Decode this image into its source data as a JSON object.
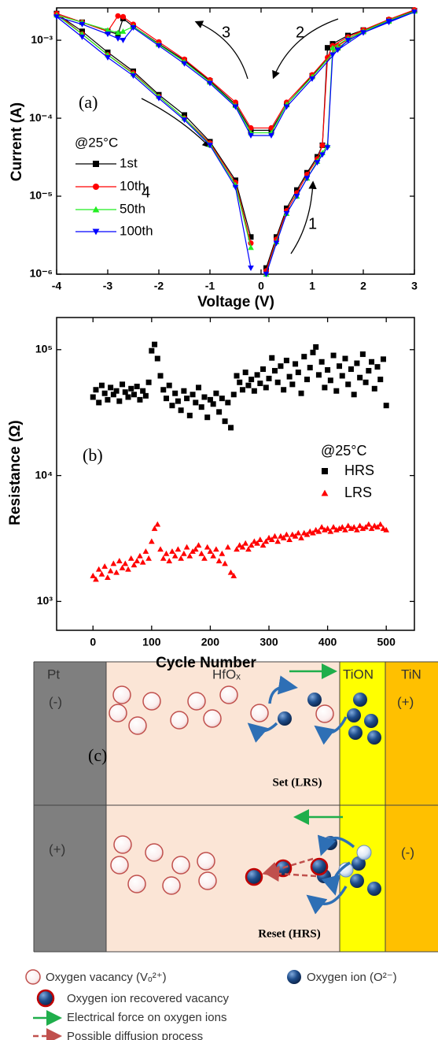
{
  "chart_data": [
    {
      "type": "line",
      "ylog": true,
      "grid": false,
      "xlabel": "Voltage (V)",
      "ylabel": "Current (A)",
      "x": [
        0.1,
        0.3,
        0.5,
        0.7,
        0.9,
        1.1,
        1.2,
        1.3,
        1.4,
        1.7,
        2.0,
        2.5,
        3.0,
        2.5,
        2.0,
        1.5,
        1.0,
        0.5,
        0.2,
        -0.2,
        -0.5,
        -1.0,
        -1.5,
        -2.0,
        -2.5,
        -2.7,
        -2.8,
        -3.0,
        -3.5,
        -4.0,
        -3.5,
        -3.0,
        -2.5,
        -2.0,
        -1.5,
        -1.0,
        -0.5,
        -0.2
      ],
      "series": [
        {
          "name": "1st",
          "color": "#000000",
          "marker": "square",
          "values": [
            1.2e-06,
            3e-06,
            7e-06,
            1.2e-05,
            2e-05,
            3.2e-05,
            4.5e-05,
            0.0008,
            0.0009,
            0.00115,
            0.00135,
            0.0018,
            0.0024,
            0.0018,
            0.0013,
            0.0008,
            0.00035,
            0.00015,
            7e-05,
            7e-05,
            0.00015,
            0.0003,
            0.00055,
            0.0009,
            0.0015,
            0.0019,
            0.0012,
            0.0013,
            0.0017,
            0.0022,
            0.0013,
            0.0007,
            0.0004,
            0.0002,
            0.00011,
            5e-05,
            1.6e-05,
            3e-06
          ]
        },
        {
          "name": "10th",
          "color": "#ff0000",
          "marker": "circle",
          "values": [
            1.1e-06,
            2.8e-06,
            6.5e-06,
            1.1e-05,
            1.9e-05,
            3e-05,
            4.5e-05,
            0.0006,
            0.00085,
            0.0011,
            0.00135,
            0.00185,
            0.00245,
            0.00185,
            0.00135,
            0.00085,
            0.00036,
            0.00016,
            7.5e-05,
            7.5e-05,
            0.00016,
            0.00031,
            0.00057,
            0.00095,
            0.0016,
            0.002,
            0.00205,
            0.0013,
            0.0017,
            0.0022,
            0.0012,
            0.00065,
            0.00038,
            0.00019,
            0.0001,
            4.8e-05,
            1.5e-05,
            2.5e-06
          ]
        },
        {
          "name": "50th",
          "color": "#22ee22",
          "marker": "triangle-up",
          "values": [
            1e-06,
            2.6e-06,
            6e-06,
            1e-05,
            1.7e-05,
            2.8e-05,
            3.6e-05,
            4.5e-05,
            0.0008,
            0.00105,
            0.0013,
            0.00175,
            0.00235,
            0.0018,
            0.0013,
            0.0008,
            0.00034,
            0.00015,
            6.5e-05,
            6.5e-05,
            0.000145,
            0.00029,
            0.00053,
            0.00088,
            0.0015,
            0.0013,
            0.00125,
            0.00135,
            0.0017,
            0.0021,
            0.0012,
            0.00065,
            0.00037,
            0.00019,
            0.0001,
            4.6e-05,
            1.4e-05,
            2.2e-06
          ]
        },
        {
          "name": "100th",
          "color": "#0000ff",
          "marker": "triangle-down",
          "values": [
            1e-06,
            2.5e-06,
            6e-06,
            1e-05,
            1.7e-05,
            2.7e-05,
            3.4e-05,
            4.2e-05,
            0.00065,
            0.001,
            0.00125,
            0.0017,
            0.0023,
            0.00175,
            0.00125,
            0.00075,
            0.00032,
            0.00014,
            6e-05,
            6e-05,
            0.00014,
            0.00028,
            0.0005,
            0.00085,
            0.00145,
            0.001,
            0.00105,
            0.0012,
            0.0016,
            0.002,
            0.0011,
            0.0006,
            0.00035,
            0.00018,
            9.5e-05,
            4.5e-05,
            1.3e-05,
            1.2e-06
          ]
        }
      ],
      "xlim": [
        -4,
        3
      ],
      "xticks": [
        -4,
        -3,
        -2,
        -1,
        0,
        1,
        2,
        3
      ],
      "ylim": [
        1e-06,
        0.0026
      ],
      "yticks": [
        {
          "value": 1e-06,
          "label": "10⁻⁶"
        },
        {
          "value": 1e-05,
          "label": "10⁻⁵"
        },
        {
          "value": 0.0001,
          "label": "10⁻⁴"
        },
        {
          "value": 0.001,
          "label": "10⁻³"
        }
      ],
      "annotations": [
        "(a)",
        "@25°C",
        "3",
        "2",
        "4",
        "1"
      ]
    },
    {
      "type": "scatter",
      "ylog": true,
      "grid": false,
      "xlabel": "Cycle Number",
      "ylabel": "Resistance (Ω)",
      "x": [
        0,
        5,
        10,
        15,
        20,
        25,
        30,
        35,
        40,
        45,
        50,
        55,
        60,
        65,
        70,
        75,
        80,
        85,
        90,
        95,
        100,
        105,
        110,
        115,
        120,
        125,
        130,
        135,
        140,
        145,
        150,
        155,
        160,
        165,
        170,
        175,
        180,
        185,
        190,
        195,
        200,
        205,
        210,
        215,
        220,
        225,
        230,
        235,
        240,
        245,
        250,
        255,
        260,
        265,
        270,
        275,
        280,
        285,
        290,
        295,
        300,
        305,
        310,
        315,
        320,
        325,
        330,
        335,
        340,
        345,
        350,
        355,
        360,
        365,
        370,
        375,
        380,
        385,
        390,
        395,
        400,
        405,
        410,
        415,
        420,
        425,
        430,
        435,
        440,
        445,
        450,
        455,
        460,
        465,
        470,
        475,
        480,
        485,
        490,
        495,
        500
      ],
      "series": [
        {
          "name": "HRS",
          "color": "#000000",
          "marker": "square",
          "values": [
            42000,
            48000,
            38000,
            52000,
            45000,
            40000,
            50000,
            44000,
            47000,
            39000,
            53000,
            46000,
            42000,
            49000,
            44000,
            51000,
            40000,
            47000,
            43000,
            55000,
            98000,
            110000,
            85000,
            62000,
            48000,
            41000,
            52000,
            36000,
            45000,
            39000,
            33000,
            47000,
            41000,
            30000,
            44000,
            38000,
            50000,
            35000,
            42000,
            29000,
            40000,
            37000,
            45000,
            32000,
            41000,
            27000,
            38000,
            24000,
            44000,
            62000,
            55000,
            48000,
            66000,
            52000,
            58000,
            47000,
            63000,
            54000,
            70000,
            50000,
            59000,
            86000,
            68000,
            55000,
            74000,
            48000,
            82000,
            61000,
            53000,
            77000,
            66000,
            45000,
            88000,
            58000,
            72000,
            95000,
            105000,
            63000,
            80000,
            50000,
            69000,
            57000,
            90000,
            47000,
            74000,
            62000,
            85000,
            53000,
            70000,
            44000,
            78000,
            60000,
            92000,
            55000,
            68000,
            80000,
            49000,
            73000,
            58000,
            84000,
            36000
          ]
        },
        {
          "name": "LRS",
          "color": "#ff0000",
          "marker": "triangle-up",
          "values": [
            1600,
            1500,
            1800,
            1650,
            1900,
            1550,
            1750,
            2000,
            1700,
            2100,
            1850,
            2000,
            1800,
            2200,
            1950,
            2100,
            2300,
            2050,
            2500,
            2200,
            3000,
            3800,
            4100,
            2600,
            2200,
            2400,
            2100,
            2500,
            2300,
            2600,
            2200,
            2400,
            2700,
            2300,
            2500,
            2600,
            2800,
            2400,
            2200,
            2700,
            2500,
            2300,
            2600,
            2100,
            2400,
            2000,
            2700,
            1700,
            1600,
            2600,
            2800,
            2700,
            2900,
            2600,
            2800,
            3000,
            2900,
            3100,
            2800,
            3000,
            3200,
            3100,
            3300,
            3000,
            3300,
            3200,
            3400,
            3100,
            3400,
            3300,
            3500,
            3200,
            3500,
            3400,
            3600,
            3500,
            3700,
            3600,
            3900,
            3700,
            3800,
            3600,
            3900,
            3700,
            3800,
            3900,
            3700,
            4000,
            3800,
            3900,
            3700,
            4000,
            3800,
            3900,
            4100,
            3800,
            4000,
            3900,
            4100,
            3800,
            3700
          ]
        }
      ],
      "xlim": [
        -62,
        548
      ],
      "xticks": [
        0,
        100,
        200,
        300,
        400,
        500
      ],
      "ylim": [
        590,
        180000
      ],
      "yticks": [
        {
          "value": 1000,
          "label": "10³"
        },
        {
          "value": 10000,
          "label": "10⁴"
        },
        {
          "value": 100000,
          "label": "10⁵"
        }
      ],
      "annotations": [
        "(b)",
        "@25°C"
      ]
    }
  ],
  "diagram": {
    "layers": [
      "Pt",
      "HfOₓ",
      "TiON",
      "TiN"
    ],
    "top": {
      "left": "(-)",
      "right": "(+)",
      "panel": "(c)",
      "process": "Set (LRS)"
    },
    "bottom": {
      "left": "(+)",
      "right": "(-)",
      "process": "Reset (HRS)"
    },
    "legend": [
      "Oxygen vacancy (Vₒ²⁺)",
      "Oxygen ion (O²⁻)",
      "Oxygen ion recovered vacancy",
      "Electrical force on oxygen ions",
      "Possible diffusion process"
    ]
  }
}
